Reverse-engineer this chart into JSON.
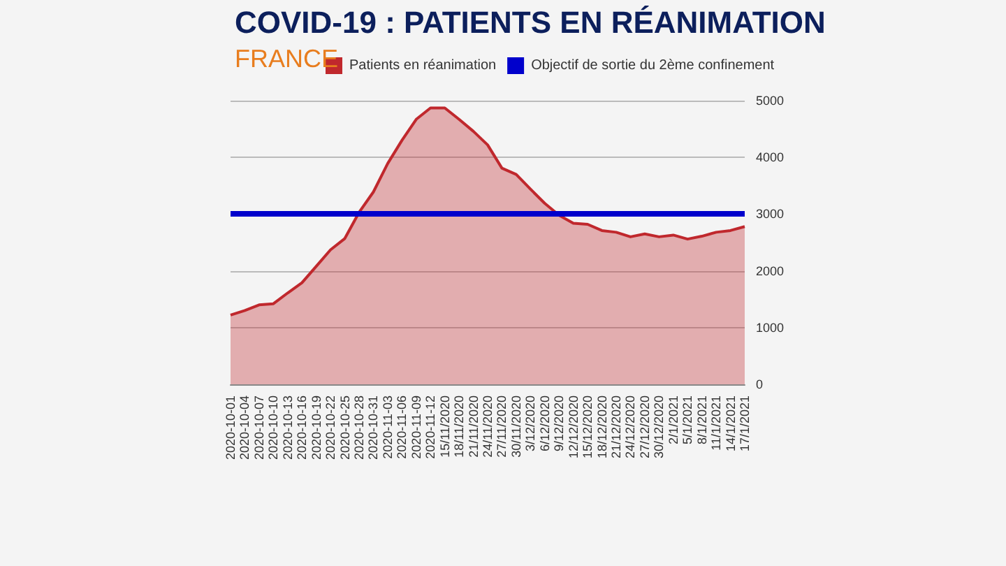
{
  "chart_data": {
    "type": "area",
    "title": "COVID-19 : PATIENTS EN RÉANIMATION",
    "subtitle": "FRANCE",
    "categories": [
      "2020-10-01",
      "2020-10-04",
      "2020-10-07",
      "2020-10-10",
      "2020-10-13",
      "2020-10-16",
      "2020-10-19",
      "2020-10-22",
      "2020-10-25",
      "2020-10-28",
      "2020-10-31",
      "2020-11-03",
      "2020-11-06",
      "2020-11-09",
      "2020-11-12",
      "15/11/2020",
      "18/11/2020",
      "21/11/2020",
      "24/11/2020",
      "27/11/2020",
      "30/11/2020",
      "3/12/2020",
      "6/12/2020",
      "9/12/2020",
      "12/12/2020",
      "15/12/2020",
      "18/12/2020",
      "21/12/2020",
      "24/12/2020",
      "27/12/2020",
      "30/12/2020",
      "2/1/2021",
      "5/1/2021",
      "8/1/2021",
      "11/1/2021",
      "14/1/2021",
      "17/1/2021"
    ],
    "series": [
      {
        "name": "Patients en réanimation",
        "color": "#c0282d",
        "values": [
          1220,
          1300,
          1400,
          1420,
          1610,
          1790,
          2080,
          2370,
          2570,
          3030,
          3390,
          3890,
          4300,
          4670,
          4870,
          4870,
          4670,
          4460,
          4220,
          3810,
          3700,
          3440,
          3190,
          2980,
          2840,
          2820,
          2710,
          2680,
          2600,
          2650,
          2600,
          2630,
          2560,
          2610,
          2680,
          2710,
          2780
        ]
      }
    ],
    "ylim": [
      0,
      5000
    ],
    "yticks": [
      0,
      1000,
      2000,
      3000,
      4000,
      5000
    ],
    "grid": "y",
    "legend": "top",
    "marker": "none",
    "ref_lines": [
      {
        "axis": "y",
        "value": 3000,
        "label": "Objectif de sortie du 2ème confinement",
        "color": "#0000cc"
      }
    ]
  }
}
